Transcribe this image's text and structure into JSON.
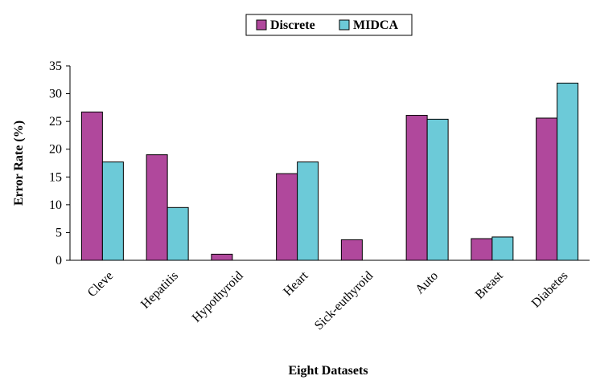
{
  "chart_data": {
    "type": "bar",
    "title": "",
    "xlabel": "Eight Datasets",
    "ylabel": "Error Rate (%)",
    "ylim": [
      0,
      35
    ],
    "yticks": [
      0,
      5,
      10,
      15,
      20,
      25,
      30,
      35
    ],
    "grid": false,
    "legend_position": "top-center",
    "categories": [
      "Cleve",
      "Hepatitis",
      "Hypothyroid",
      "Heart",
      "Sick-euthyroid",
      "Auto",
      "Breast",
      "Diabetes"
    ],
    "series": [
      {
        "name": "Discrete",
        "color": "#b0489c",
        "values": [
          26.7,
          19.0,
          1.1,
          15.6,
          3.7,
          26.1,
          3.9,
          25.6
        ]
      },
      {
        "name": "MIDCA",
        "color": "#6ccad8",
        "values": [
          17.7,
          9.5,
          0,
          17.7,
          0,
          25.4,
          4.2,
          31.9
        ]
      }
    ]
  }
}
